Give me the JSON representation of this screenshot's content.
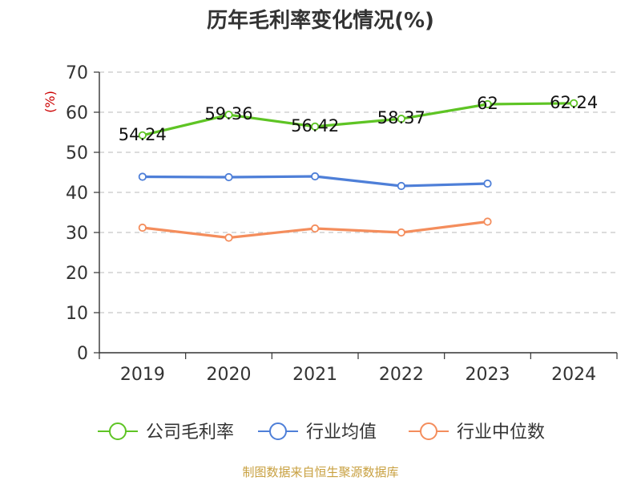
{
  "chart_data": {
    "type": "line",
    "title": "历年毛利率变化情况(%)",
    "ylabel": "(%)",
    "xlabel": "",
    "categories": [
      "2019",
      "2020",
      "2021",
      "2022",
      "2023",
      "2024"
    ],
    "ylim": [
      0,
      70
    ],
    "yticks": [
      0,
      10,
      20,
      30,
      40,
      50,
      60,
      70
    ],
    "grid": true,
    "legend_position": "bottom",
    "series": [
      {
        "name": "公司毛利率",
        "color": "#5ec424",
        "values": [
          54.24,
          59.36,
          56.42,
          58.37,
          62,
          62.24
        ],
        "labels": [
          "54.24",
          "59.36",
          "56.42",
          "58.37",
          "62",
          "62.24"
        ]
      },
      {
        "name": "行业均值",
        "color": "#4e7fd8",
        "values": [
          43.9,
          43.8,
          44.0,
          41.6,
          42.2,
          null
        ],
        "labels": null
      },
      {
        "name": "行业中位数",
        "color": "#f48d5c",
        "values": [
          31.2,
          28.7,
          31.0,
          30.0,
          32.7,
          null
        ],
        "labels": null
      }
    ]
  },
  "source": "制图数据来自恒生聚源数据库"
}
